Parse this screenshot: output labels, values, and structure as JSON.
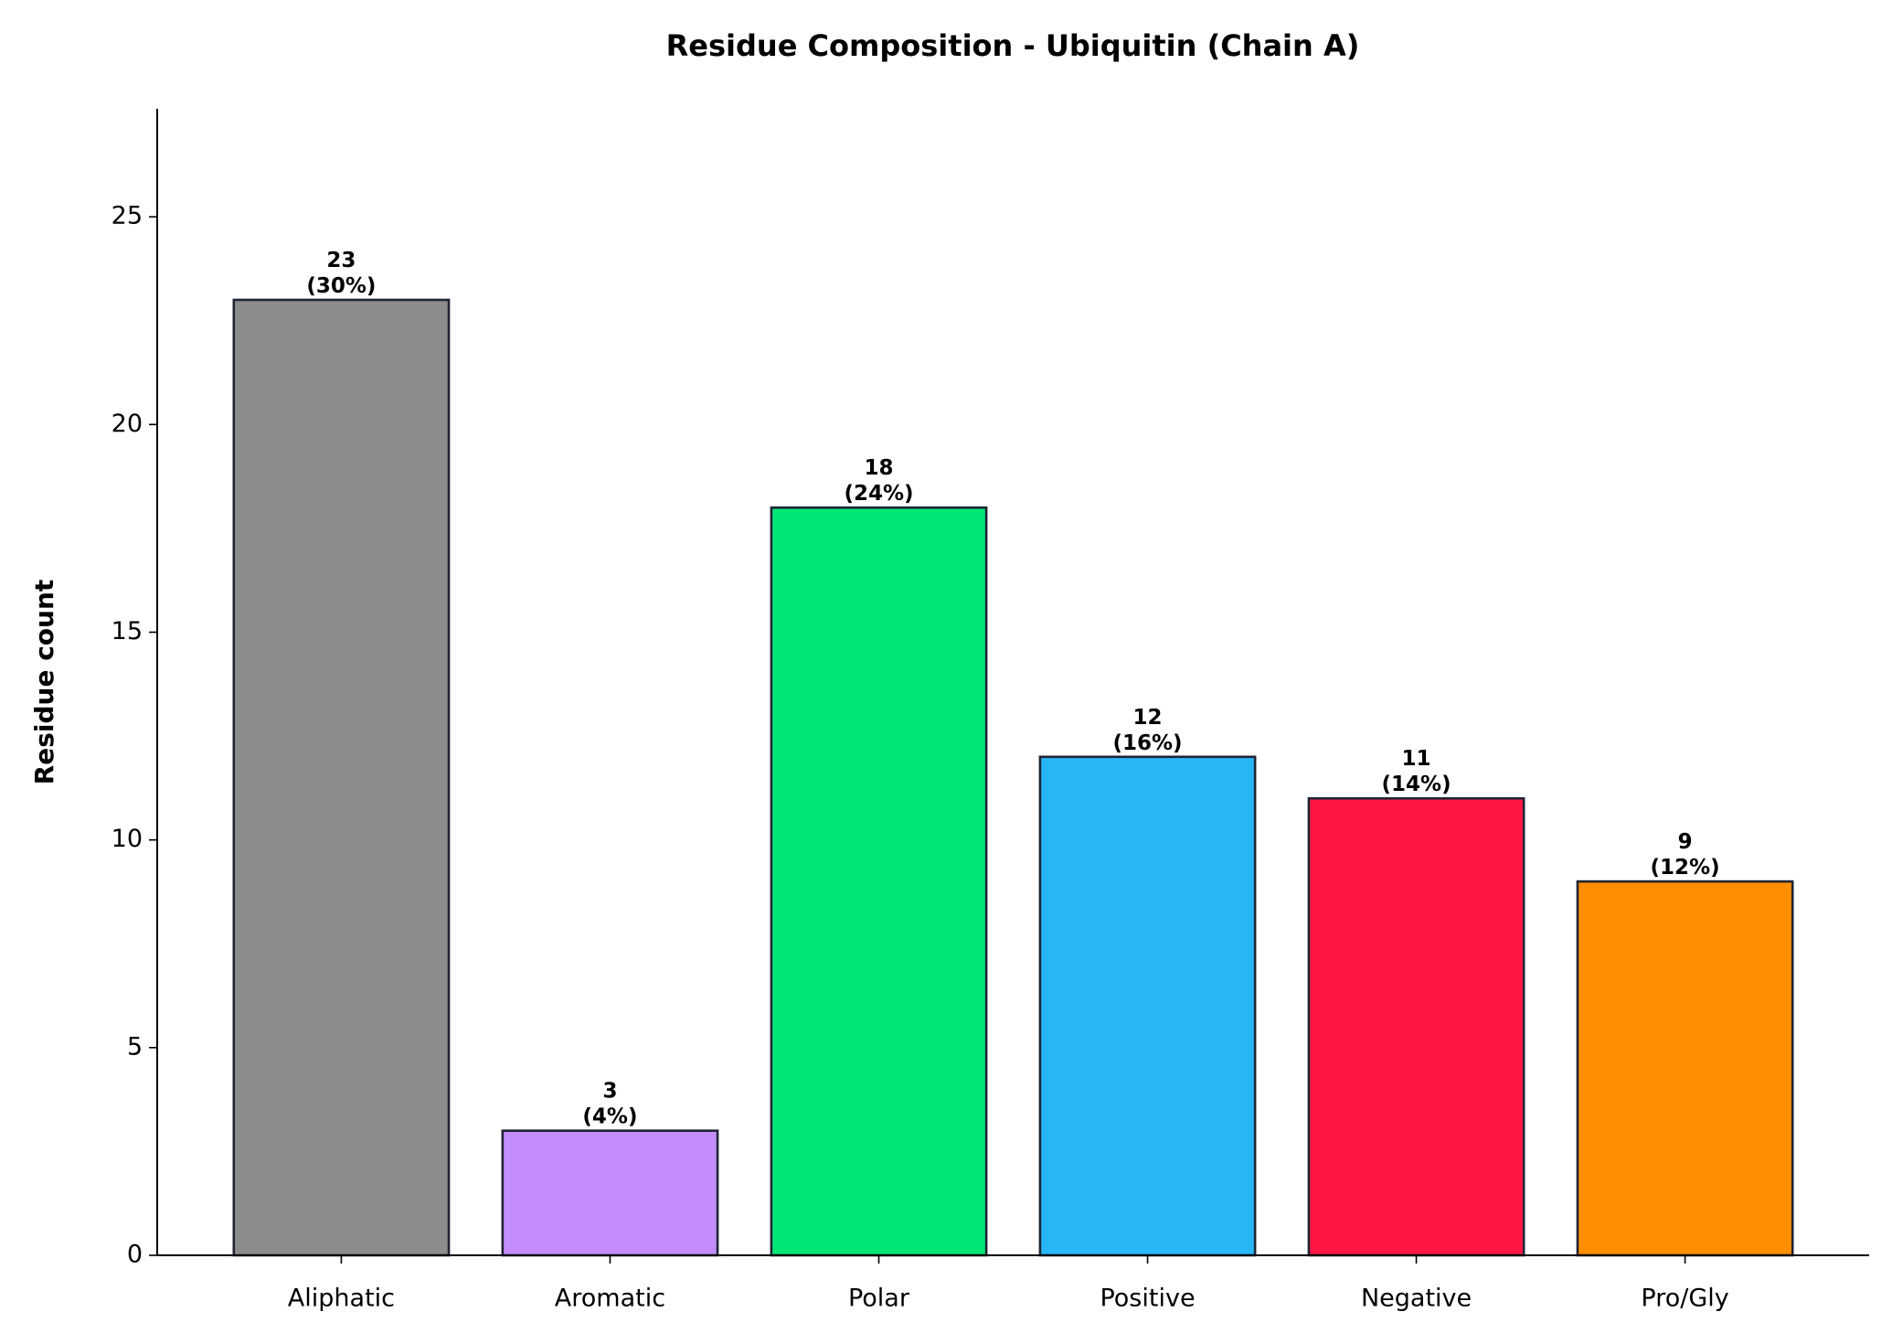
{
  "chart_data": {
    "type": "bar",
    "title": "Residue Composition - Ubiquitin (Chain A)",
    "y_label": "Residue count",
    "categories": [
      "Aliphatic",
      "Aromatic",
      "Polar",
      "Positive",
      "Negative",
      "Pro/Gly"
    ],
    "values": [
      23,
      3,
      18,
      12,
      11,
      9
    ],
    "value_labels": [
      "23\n(30%)",
      "3\n(4%)",
      "18\n(24%)",
      "12\n(16%)",
      "11\n(14%)",
      "9\n(12%)"
    ],
    "colors": [
      "#8c8c8c",
      "#c38cfa",
      "#00e676",
      "#29b6f6",
      "#ff1744",
      "#ff8f00"
    ],
    "edge_color": "#1e2433",
    "ylim": [
      0,
      27.6
    ],
    "yticks": [
      0,
      5,
      10,
      15,
      20,
      25
    ],
    "grid": false
  }
}
